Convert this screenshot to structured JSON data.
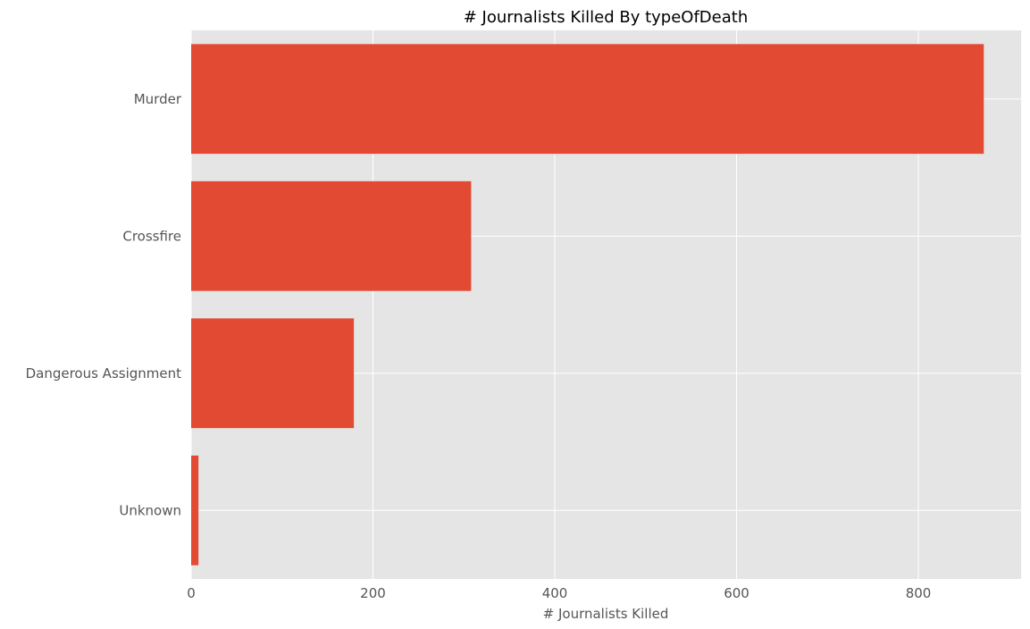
{
  "chart_data": {
    "type": "bar",
    "orientation": "horizontal",
    "title": "# Journalists Killed By typeOfDeath",
    "xlabel": "# Journalists Killed",
    "ylabel": "",
    "categories": [
      "Murder",
      "Crossfire",
      "Dangerous Assignment",
      "Unknown"
    ],
    "values": [
      872,
      308,
      179,
      8
    ],
    "xlim": [
      0,
      913
    ],
    "xticks": [
      0,
      200,
      400,
      600,
      800
    ],
    "grid": true,
    "legend": "none",
    "colors": {
      "bar": "#E24A33",
      "plot_background": "#E5E5E5",
      "grid": "#FFFFFF",
      "tick_label": "#555555",
      "title": "#000000"
    }
  }
}
